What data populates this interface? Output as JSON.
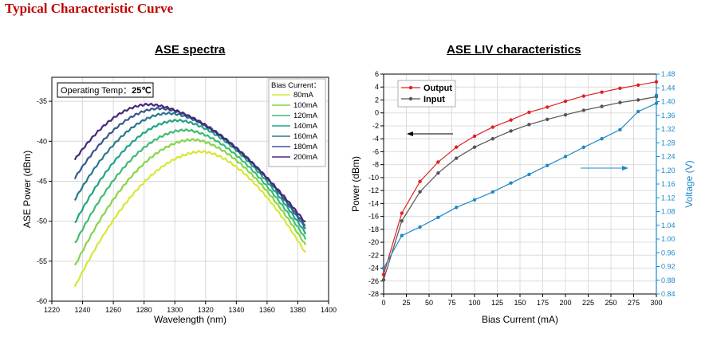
{
  "page": {
    "title": "Typical Characteristic Curve"
  },
  "chart_data": [
    {
      "type": "line",
      "title": "ASE spectra",
      "xlabel": "Wavelength (nm)",
      "ylabel": "ASE Power (dBm)",
      "xlim": [
        1220,
        1400
      ],
      "ylim": [
        -60,
        -32
      ],
      "xticks": [
        1220,
        1240,
        1260,
        1280,
        1300,
        1320,
        1340,
        1360,
        1380,
        1400
      ],
      "yticks": [
        -60,
        -55,
        -50,
        -45,
        -40,
        -35
      ],
      "grid": true,
      "annotation": {
        "label": "Operating Temp：",
        "value": "25℃"
      },
      "legend": {
        "title": "Bias Current：",
        "placement": "top-right"
      },
      "series": [
        {
          "name": "80mA",
          "color": "#d6e836",
          "start": [
            1235,
            -58.2
          ],
          "peak": [
            1318,
            -41.3
          ],
          "end": [
            1385,
            -54.0
          ]
        },
        {
          "name": "100mA",
          "color": "#86d549",
          "start": [
            1235,
            -55.6
          ],
          "peak": [
            1312,
            -39.8
          ],
          "end": [
            1385,
            -53.0
          ]
        },
        {
          "name": "120mA",
          "color": "#3fbc73",
          "start": [
            1235,
            -52.8
          ],
          "peak": [
            1307,
            -38.6
          ],
          "end": [
            1385,
            -52.2
          ]
        },
        {
          "name": "140mA",
          "color": "#21a585",
          "start": [
            1235,
            -50.2
          ],
          "peak": [
            1302,
            -37.4
          ],
          "end": [
            1385,
            -51.5
          ]
        },
        {
          "name": "160mA",
          "color": "#2a788e",
          "start": [
            1235,
            -47.3
          ],
          "peak": [
            1296,
            -36.5
          ],
          "end": [
            1385,
            -50.9
          ]
        },
        {
          "name": "180mA",
          "color": "#39568c",
          "start": [
            1235,
            -44.6
          ],
          "peak": [
            1290,
            -35.9
          ],
          "end": [
            1385,
            -50.6
          ]
        },
        {
          "name": "200mA",
          "color": "#482878",
          "start": [
            1235,
            -42.3
          ],
          "peak": [
            1283,
            -35.4
          ],
          "end": [
            1385,
            -50.2
          ]
        }
      ]
    },
    {
      "type": "line",
      "title": "ASE LIV characteristics",
      "xlabel": "Bias Current (mA)",
      "ylabel": "Power (dBm)",
      "y2label": "Voltage (V)",
      "xlim": [
        0,
        300
      ],
      "ylim": [
        -28,
        6
      ],
      "y2lim": [
        0.84,
        1.48
      ],
      "xticks": [
        0,
        25,
        50,
        75,
        100,
        125,
        150,
        175,
        200,
        225,
        250,
        275,
        300
      ],
      "yticks": [
        -28,
        -26,
        -24,
        -22,
        -20,
        -18,
        -16,
        -14,
        -12,
        -10,
        -8,
        -6,
        -4,
        -2,
        0,
        2,
        4,
        6
      ],
      "y2ticks": [
        0.84,
        0.88,
        0.92,
        0.96,
        1.0,
        1.04,
        1.08,
        1.12,
        1.16,
        1.2,
        1.24,
        1.28,
        1.32,
        1.36,
        1.4,
        1.44,
        1.48
      ],
      "grid": true,
      "legend": {
        "placement": "top-left"
      },
      "x": [
        0,
        20,
        40,
        60,
        80,
        100,
        120,
        140,
        160,
        180,
        200,
        220,
        240,
        260,
        280,
        300
      ],
      "series": [
        {
          "name": "Output",
          "axis": "left",
          "color": "#e02020",
          "values": [
            -25.0,
            -15.5,
            -10.6,
            -7.6,
            -5.3,
            -3.6,
            -2.2,
            -1.1,
            0.1,
            0.9,
            1.8,
            2.6,
            3.2,
            3.8,
            4.3,
            4.8
          ]
        },
        {
          "name": "Input",
          "axis": "left",
          "color": "#555555",
          "values": [
            -25.8,
            -16.7,
            -12.2,
            -9.3,
            -7.0,
            -5.3,
            -4.0,
            -2.8,
            -1.8,
            -1.0,
            -0.3,
            0.4,
            1.0,
            1.6,
            2.0,
            2.5
          ]
        },
        {
          "name": "",
          "axis": "right",
          "color": "#1e88c8",
          "values": [
            0.915,
            1.01,
            1.035,
            1.063,
            1.092,
            1.114,
            1.137,
            1.163,
            1.188,
            1.214,
            1.24,
            1.267,
            1.292,
            1.318,
            1.371,
            1.395,
            1.418
          ],
          "x": [
            0,
            20,
            40,
            60,
            80,
            100,
            120,
            140,
            160,
            180,
            200,
            220,
            240,
            260,
            280,
            300,
            300
          ]
        }
      ]
    }
  ]
}
